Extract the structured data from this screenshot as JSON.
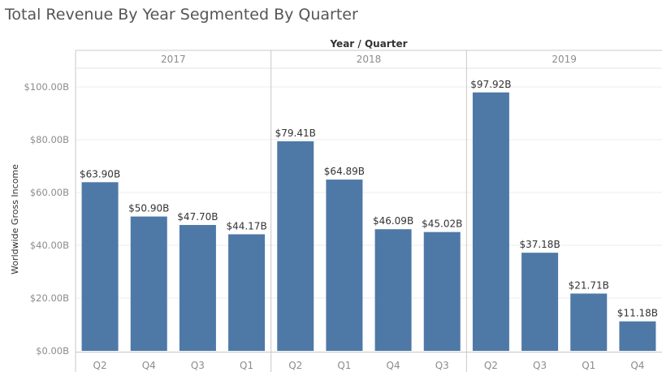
{
  "chart_title": "Total Revenue By Year Segmented By Quarter",
  "colors": {
    "bar": "#4e79a7",
    "grid": "#ececec",
    "axis_text": "#8c8c8c",
    "label_text": "#333333",
    "divider": "#c8c8c8"
  },
  "chart_data": {
    "type": "bar",
    "title": "Total Revenue By Year Segmented By Quarter",
    "column_header": "Year / Quarter",
    "ylabel": "Worldwide Gross Income",
    "ylim": [
      0,
      110
    ],
    "yticks": [
      {
        "value": 0,
        "label": "$0.00B"
      },
      {
        "value": 20,
        "label": "$20.00B"
      },
      {
        "value": 40,
        "label": "$40.00B"
      },
      {
        "value": 60,
        "label": "$60.00B"
      },
      {
        "value": 80,
        "label": "$80.00B"
      },
      {
        "value": 100,
        "label": "$100.00B"
      }
    ],
    "grid": true,
    "groups": [
      {
        "year": "2017",
        "bars": [
          {
            "quarter": "Q2",
            "value": 63.9,
            "label": "$63.90B"
          },
          {
            "quarter": "Q4",
            "value": 50.9,
            "label": "$50.90B"
          },
          {
            "quarter": "Q3",
            "value": 47.7,
            "label": "$47.70B"
          },
          {
            "quarter": "Q1",
            "value": 44.17,
            "label": "$44.17B"
          }
        ]
      },
      {
        "year": "2018",
        "bars": [
          {
            "quarter": "Q2",
            "value": 79.41,
            "label": "$79.41B"
          },
          {
            "quarter": "Q1",
            "value": 64.89,
            "label": "$64.89B"
          },
          {
            "quarter": "Q4",
            "value": 46.09,
            "label": "$46.09B"
          },
          {
            "quarter": "Q3",
            "value": 45.02,
            "label": "$45.02B"
          }
        ]
      },
      {
        "year": "2019",
        "bars": [
          {
            "quarter": "Q2",
            "value": 97.92,
            "label": "$97.92B"
          },
          {
            "quarter": "Q3",
            "value": 37.18,
            "label": "$37.18B"
          },
          {
            "quarter": "Q1",
            "value": 21.71,
            "label": "$21.71B"
          },
          {
            "quarter": "Q4",
            "value": 11.18,
            "label": "$11.18B"
          }
        ]
      }
    ]
  }
}
